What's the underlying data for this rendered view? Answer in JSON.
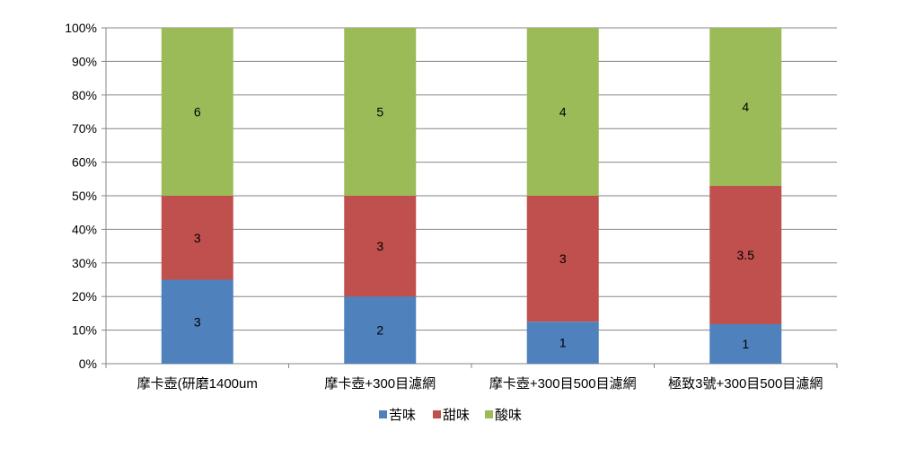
{
  "chart_data": {
    "type": "bar",
    "stacked": "percent",
    "categories": [
      "摩卡壺(研磨1400um",
      "摩卡壺+300目濾網",
      "摩卡壺+300目500目濾網",
      "極致3號+300目500目濾網"
    ],
    "series": [
      {
        "name": "苦味",
        "values": [
          3,
          2,
          1,
          1
        ],
        "color": "#4f81bd"
      },
      {
        "name": "甜味",
        "values": [
          3,
          3,
          3,
          3.5
        ],
        "color": "#c0504d"
      },
      {
        "name": "酸味",
        "values": [
          6,
          5,
          4,
          4
        ],
        "color": "#9bbb59"
      }
    ],
    "yticks": [
      "0%",
      "10%",
      "20%",
      "30%",
      "40%",
      "50%",
      "60%",
      "70%",
      "80%",
      "90%",
      "100%"
    ],
    "ylim": [
      0,
      100
    ],
    "grid": true,
    "legend": "bottom",
    "data_labels": true
  }
}
